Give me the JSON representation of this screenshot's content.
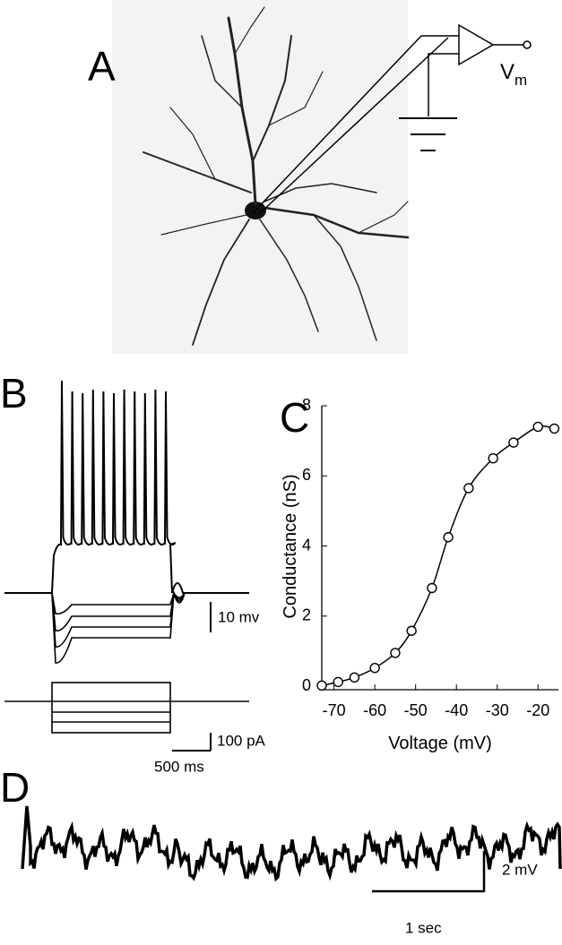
{
  "panel_labels": [
    "A",
    "B",
    "C",
    "D"
  ],
  "amplifier_label": {
    "main": "V",
    "subscript": "m"
  },
  "panel_b_scale_bars": {
    "voltage": "10 mv",
    "current": "100 pA",
    "time": "500 ms"
  },
  "panel_d_scale_bars": {
    "voltage": "2 mV",
    "time": "1 sec"
  },
  "chart_data": {
    "type": "line",
    "x_label": "Voltage (mV)",
    "y_label": "Conductance (nS)",
    "x": [
      -73,
      -69,
      -65,
      -60,
      -55,
      -51,
      -46,
      -42,
      -37,
      -31,
      -26,
      -20,
      -16
    ],
    "series": [
      {
        "color": "#000000",
        "values": [
          0.02,
          0.12,
          0.25,
          0.52,
          0.95,
          1.58,
          2.8,
          4.25,
          5.65,
          6.5,
          6.95,
          7.4,
          7.35
        ]
      }
    ],
    "xlim": [
      -73,
      -15
    ],
    "ylim": [
      -0.1,
      8
    ],
    "xticks": [
      -70,
      -60,
      -50,
      -40,
      -30,
      -20
    ],
    "yticks": [
      0,
      2,
      4,
      6,
      8
    ]
  }
}
